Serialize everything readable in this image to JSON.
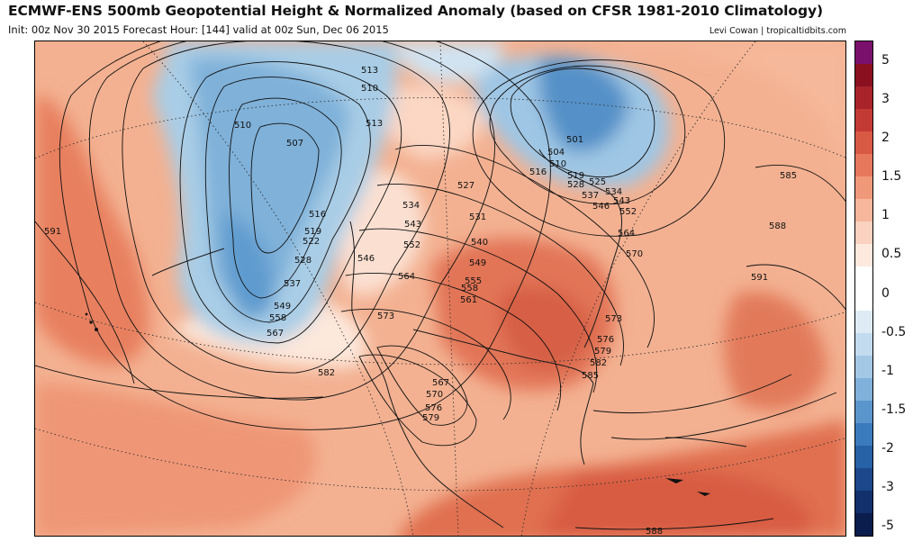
{
  "header": {
    "title": "ECMWF-ENS 500mb Geopotential Height & Normalized Anomaly (based on CFSR 1981-2010 Climatology)",
    "subtitle": "Init: 00z Nov 30 2015   Forecast Hour: [144]   valid at 00z Sun, Dec 06 2015",
    "credit": "Levi Cowan | tropicaltidbits.com"
  },
  "colorbar": {
    "segments": [
      {
        "color": "#7b0f6c"
      },
      {
        "color": "#8a1020"
      },
      {
        "color": "#a8242a"
      },
      {
        "color": "#c33a34"
      },
      {
        "color": "#d85a45"
      },
      {
        "color": "#e6785c"
      },
      {
        "color": "#f0997a"
      },
      {
        "color": "#f6b79c"
      },
      {
        "color": "#fad2bf"
      },
      {
        "color": "#fde9de"
      },
      {
        "color": "#ffffff"
      },
      {
        "color": "#ffffff"
      },
      {
        "color": "#deebf5"
      },
      {
        "color": "#c3dbee"
      },
      {
        "color": "#a3c8e5"
      },
      {
        "color": "#7fb1da"
      },
      {
        "color": "#5a96cc"
      },
      {
        "color": "#3a7bbd"
      },
      {
        "color": "#2761a6"
      },
      {
        "color": "#1c478a"
      },
      {
        "color": "#12306b"
      },
      {
        "color": "#0a1d4c"
      }
    ],
    "ticks": [
      "5",
      "3",
      "2",
      "1.5",
      "1",
      "0.5",
      "0",
      "-0.5",
      "-1",
      "-1.5",
      "-2",
      "-3",
      "-5"
    ]
  },
  "height_labels": [
    {
      "text": "513"
    },
    {
      "text": "510"
    },
    {
      "text": "513"
    },
    {
      "text": "510"
    },
    {
      "text": "507"
    },
    {
      "text": "516"
    },
    {
      "text": "519"
    },
    {
      "text": "522"
    },
    {
      "text": "528"
    },
    {
      "text": "537"
    },
    {
      "text": "549"
    },
    {
      "text": "558"
    },
    {
      "text": "567"
    },
    {
      "text": "546"
    },
    {
      "text": "534"
    },
    {
      "text": "543"
    },
    {
      "text": "552"
    },
    {
      "text": "564"
    },
    {
      "text": "527"
    },
    {
      "text": "531"
    },
    {
      "text": "540"
    },
    {
      "text": "549"
    },
    {
      "text": "555"
    },
    {
      "text": "558"
    },
    {
      "text": "561"
    },
    {
      "text": "501"
    },
    {
      "text": "504"
    },
    {
      "text": "510"
    },
    {
      "text": "516"
    },
    {
      "text": "519"
    },
    {
      "text": "525"
    },
    {
      "text": "528"
    },
    {
      "text": "534"
    },
    {
      "text": "537"
    },
    {
      "text": "543"
    },
    {
      "text": "546"
    },
    {
      "text": "552"
    },
    {
      "text": "564"
    },
    {
      "text": "570"
    },
    {
      "text": "573"
    },
    {
      "text": "573"
    },
    {
      "text": "576"
    },
    {
      "text": "579"
    },
    {
      "text": "582"
    },
    {
      "text": "585"
    },
    {
      "text": "582"
    },
    {
      "text": "567"
    },
    {
      "text": "570"
    },
    {
      "text": "576"
    },
    {
      "text": "579"
    },
    {
      "text": "585"
    },
    {
      "text": "588"
    },
    {
      "text": "591"
    },
    {
      "text": "591"
    },
    {
      "text": "588"
    }
  ]
}
